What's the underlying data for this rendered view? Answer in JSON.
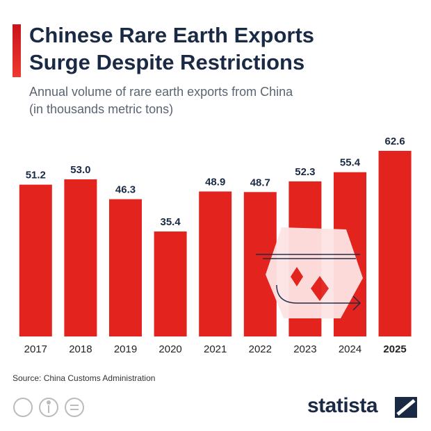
{
  "chart_data": {
    "type": "bar",
    "title": [
      "Chinese Rare Earth Exports",
      "Surge Despite Restrictions"
    ],
    "subtitle": [
      "Annual volume of rare earth exports from China",
      "(in thousands metric tons)"
    ],
    "categories": [
      "2017",
      "2018",
      "2019",
      "2020",
      "2021",
      "2022",
      "2023",
      "2024",
      "2025"
    ],
    "values": [
      51.2,
      53.0,
      46.3,
      35.4,
      48.9,
      48.7,
      52.3,
      55.4,
      62.6
    ],
    "value_labels": [
      "51.2",
      "53.0",
      "46.3",
      "35.4",
      "48.9",
      "48.7",
      "52.3",
      "55.4",
      "62.6"
    ],
    "color": "#e2231e",
    "source": "Source: China Customs Administration",
    "brand": "statista"
  }
}
